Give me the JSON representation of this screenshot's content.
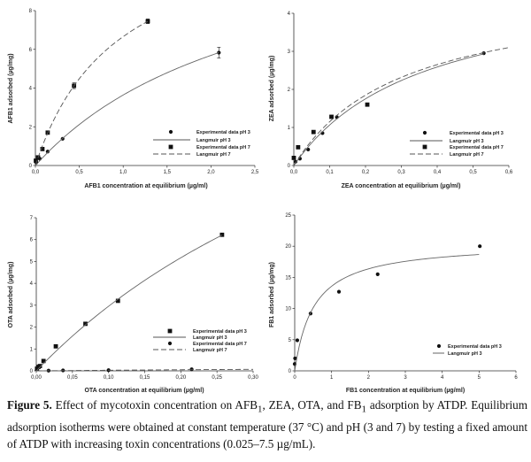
{
  "chart_data": [
    {
      "type": "scatter",
      "id": "afb1",
      "xlabel": "AFB1 concentration at equilibrium (µg/ml)",
      "ylabel": "AFB1 adsorbed (µg/mg)",
      "xlim": [
        0,
        2.5
      ],
      "ylim": [
        0,
        8
      ],
      "xticks": [
        "0,0",
        "0,5",
        "1,0",
        "1,5",
        "2,0",
        "2,5"
      ],
      "xtick_values": [
        0,
        0.5,
        1,
        1.5,
        2,
        2.5
      ],
      "yticks": [
        "0",
        "2",
        "4",
        "6",
        "8"
      ],
      "ytick_values": [
        0,
        2,
        4,
        6,
        8
      ],
      "legend_position": "bottom-right",
      "series": [
        {
          "name": "Experimental data pH 3",
          "kind": "points",
          "marker": "circle",
          "x": [
            0.01,
            0.05,
            0.14,
            0.31,
            2.09
          ],
          "y": [
            0.15,
            0.35,
            0.72,
            1.38,
            5.83
          ],
          "err": [
            0,
            0,
            0,
            0,
            0.28
          ]
        },
        {
          "name": "Langmuir pH 3",
          "kind": "langmuir",
          "style": "solid",
          "qmax": 13.0,
          "K": 0.389,
          "xrange": [
            0,
            2.09
          ]
        },
        {
          "name": "Experimental data pH 7",
          "kind": "points",
          "marker": "square",
          "x": [
            0.005,
            0.03,
            0.08,
            0.14,
            0.44,
            1.28
          ],
          "y": [
            0.25,
            0.42,
            0.85,
            1.7,
            4.12,
            7.45
          ],
          "err": [
            0,
            0,
            0,
            0,
            0.15,
            0.12
          ]
        },
        {
          "name": "Langmuir pH 7",
          "kind": "langmuir",
          "style": "dashed",
          "qmax": 12.92,
          "K": 1.063,
          "xrange": [
            0,
            1.28
          ]
        }
      ]
    },
    {
      "type": "scatter",
      "id": "zea",
      "xlabel": "ZEA concentration at equilibrium (µg/ml)",
      "ylabel": "ZEA adsorbed (µg/mg)",
      "xlim": [
        0,
        0.6
      ],
      "ylim": [
        0,
        4
      ],
      "xticks": [
        "0,0",
        "0,1",
        "0,2",
        "0,3",
        "0,4",
        "0,5",
        "0,6"
      ],
      "xtick_values": [
        0,
        0.1,
        0.2,
        0.3,
        0.4,
        0.5,
        0.6
      ],
      "yticks": [
        "0",
        "1",
        "2",
        "3",
        "4"
      ],
      "ytick_values": [
        0,
        1,
        2,
        3,
        4
      ],
      "legend_position": "bottom-right",
      "series": [
        {
          "name": "Experimental data pH 3",
          "kind": "points",
          "marker": "circle",
          "x": [
            0.005,
            0.017,
            0.04,
            0.08,
            0.12,
            0.53
          ],
          "y": [
            0.1,
            0.18,
            0.42,
            0.85,
            1.27,
            2.95
          ]
        },
        {
          "name": "Langmuir pH 3",
          "kind": "langmuir",
          "style": "solid",
          "qmax": 4.95,
          "K": 2.74,
          "xrange": [
            0,
            0.53
          ]
        },
        {
          "name": "Experimental data pH 7",
          "kind": "points",
          "marker": "square",
          "x": [
            0.0,
            0.012,
            0.055,
            0.105,
            0.205
          ],
          "y": [
            0.2,
            0.48,
            0.88,
            1.28,
            1.6
          ]
        },
        {
          "name": "Langmuir pH 7",
          "kind": "langmuir",
          "style": "dashed",
          "qmax": 4.68,
          "K": 3.265,
          "xrange": [
            0,
            0.6
          ]
        }
      ]
    },
    {
      "type": "scatter",
      "id": "ota",
      "xlabel": "OTA concentration at equilibrium (µg/ml)",
      "ylabel": "OTA adsorbed (µg/mg)",
      "xlim": [
        0,
        0.3
      ],
      "ylim": [
        0,
        7
      ],
      "xticks": [
        "0,00",
        "0,05",
        "0,10",
        "0,15",
        "0,20",
        "0,25",
        "0,30"
      ],
      "xtick_values": [
        0,
        0.05,
        0.1,
        0.15,
        0.2,
        0.25,
        0.3
      ],
      "yticks": [
        "0",
        "1",
        "2",
        "3",
        "4",
        "5",
        "6",
        "7"
      ],
      "ytick_values": [
        0,
        1,
        2,
        3,
        4,
        5,
        6,
        7
      ],
      "legend_position": "bottom-right",
      "series": [
        {
          "name": "Experimental data pH 3",
          "kind": "points",
          "marker": "square",
          "x": [
            0.001,
            0.003,
            0.005,
            0.01,
            0.027,
            0.068,
            0.113,
            0.257
          ],
          "y": [
            0.1,
            0.18,
            0.22,
            0.45,
            1.12,
            2.15,
            3.2,
            6.22
          ]
        },
        {
          "name": "Langmuir pH 3",
          "kind": "langmuir",
          "style": "solid",
          "qmax": 20.8,
          "K": 1.654,
          "xrange": [
            0,
            0.257
          ]
        },
        {
          "name": "Experimental data pH 7",
          "kind": "points",
          "marker": "circle",
          "x": [
            0.017,
            0.037,
            0.1,
            0.215
          ],
          "y": [
            0.01,
            0.02,
            0.03,
            0.07
          ]
        },
        {
          "name": "Langmuir pH 7",
          "kind": "langmuir",
          "style": "dashed",
          "qmax": 0.3,
          "K": 1.0,
          "xrange": [
            0,
            0.3
          ]
        }
      ]
    },
    {
      "type": "scatter",
      "id": "fb1",
      "xlabel": "FB1 concentration at equilibrium (µg/ml)",
      "ylabel": "FB1 adsorbed (µg/mg)",
      "xlim": [
        0,
        6
      ],
      "ylim": [
        0,
        25
      ],
      "xticks": [
        "0",
        "1",
        "2",
        "3",
        "4",
        "5",
        "6"
      ],
      "xtick_values": [
        0,
        1,
        2,
        3,
        4,
        5,
        6
      ],
      "yticks": [
        "0",
        "5",
        "10",
        "15",
        "20",
        "25"
      ],
      "ytick_values": [
        0,
        5,
        10,
        15,
        20,
        25
      ],
      "legend_position": "bottom-right",
      "series": [
        {
          "name": "Experimental data pH 3",
          "kind": "points",
          "marker": "circle",
          "x": [
            0.0,
            0.01,
            0.07,
            0.43,
            1.2,
            2.25,
            5.02
          ],
          "y": [
            1.1,
            2.0,
            4.9,
            9.2,
            12.7,
            15.5,
            20.0
          ]
        },
        {
          "name": "Langmuir pH 3",
          "kind": "langmuir",
          "style": "solid",
          "qmax": 20.6,
          "K": 1.933,
          "xrange": [
            0,
            5.0
          ]
        }
      ]
    }
  ],
  "caption": {
    "label": "Figure 5.",
    "text_1": " Effect of mycotoxin concentration on AFB",
    "sub_1": "1",
    "text_2": ", ZEA, OTA, and FB",
    "sub_2": "1",
    "text_3": " adsorption by ATDP. Equilibrium adsorption isotherms were obtained at constant temperature (37 °C) and pH (3 and 7) by testing a fixed amount of ATDP with increasing toxin concentrations (0.025–7.5 µg/mL)."
  }
}
